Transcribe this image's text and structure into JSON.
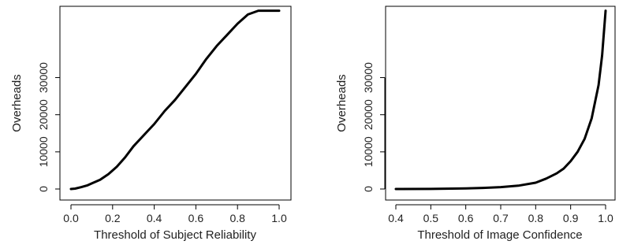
{
  "chart_data": [
    {
      "type": "line",
      "xlabel": "Threshold of Subject Reliability",
      "ylabel": "Overheads",
      "xlim": [
        0.0,
        1.0
      ],
      "ylim": [
        0,
        47500
      ],
      "x_ticks": [
        "0.0",
        "0.2",
        "0.4",
        "0.6",
        "0.8",
        "1.0"
      ],
      "y_ticks": [
        "0",
        "10000",
        "20000",
        "30000"
      ],
      "grid": false,
      "series": [
        {
          "x": [
            0.0,
            0.02,
            0.05,
            0.08,
            0.1,
            0.14,
            0.18,
            0.22,
            0.26,
            0.3,
            0.35,
            0.4,
            0.45,
            0.5,
            0.55,
            0.6,
            0.65,
            0.7,
            0.75,
            0.8,
            0.85,
            0.9,
            0.95,
            1.0
          ],
          "y": [
            0,
            100,
            500,
            1000,
            1500,
            2500,
            4000,
            6000,
            8500,
            11500,
            14500,
            17500,
            21000,
            24000,
            27500,
            31000,
            35000,
            38500,
            41500,
            44500,
            47000,
            48000,
            48000,
            48000
          ]
        }
      ]
    },
    {
      "type": "line",
      "xlabel": "Threshold of Image Confidence",
      "ylabel": "Overheads",
      "xlim": [
        0.4,
        1.0
      ],
      "ylim": [
        0,
        47500
      ],
      "x_ticks": [
        "0.4",
        "0.5",
        "0.6",
        "0.7",
        "0.8",
        "0.9",
        "1.0"
      ],
      "y_ticks": [
        "0",
        "10000",
        "20000",
        "30000"
      ],
      "grid": false,
      "series": [
        {
          "x": [
            0.4,
            0.5,
            0.6,
            0.65,
            0.7,
            0.75,
            0.8,
            0.83,
            0.86,
            0.88,
            0.9,
            0.92,
            0.94,
            0.96,
            0.98,
            0.99,
            1.0
          ],
          "y": [
            0,
            30,
            150,
            300,
            500,
            900,
            1700,
            2800,
            4200,
            5500,
            7500,
            10000,
            13500,
            19000,
            28000,
            36000,
            48000
          ]
        }
      ]
    }
  ]
}
